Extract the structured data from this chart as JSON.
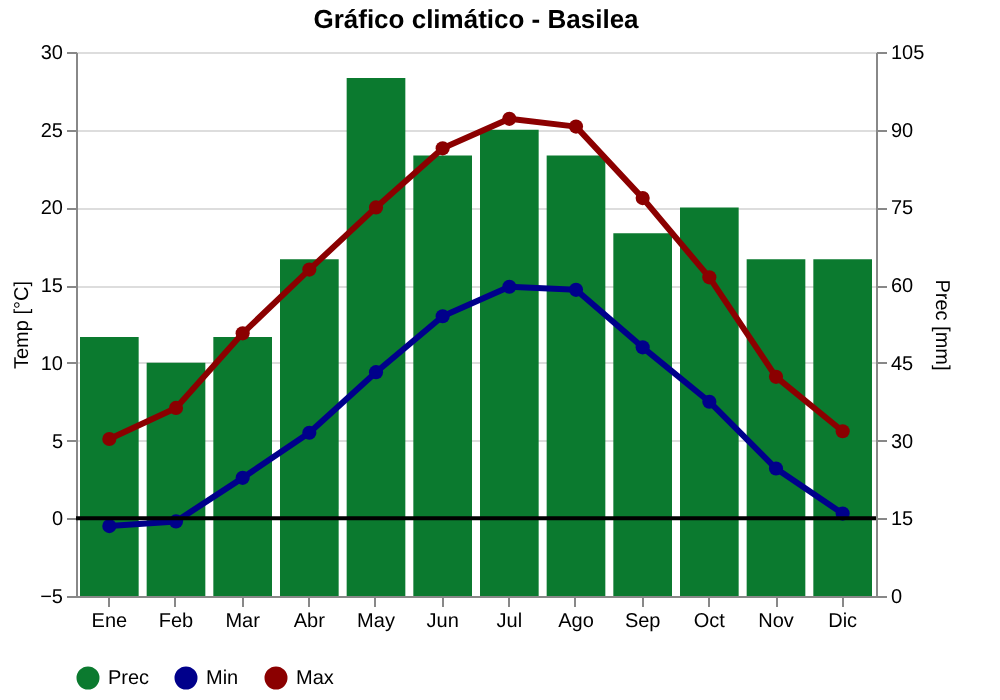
{
  "chart_data": {
    "type": "bar",
    "title": "Gráfico climático - Basilea",
    "ylabel": "Temp [°C]",
    "y2label": "Prec [mm]",
    "categories": [
      "Ene",
      "Feb",
      "Mar",
      "Abr",
      "May",
      "Jun",
      "Jul",
      "Ago",
      "Sep",
      "Oct",
      "Nov",
      "Dic"
    ],
    "series": [
      {
        "name": "Prec",
        "axis": "y2",
        "color": "#0b7a2f",
        "values": [
          50,
          45,
          50,
          65,
          100,
          85,
          90,
          85,
          70,
          75,
          65,
          65
        ]
      },
      {
        "name": "Min",
        "type": "line",
        "axis": "y",
        "color": "#00008b",
        "values": [
          -0.5,
          -0.2,
          2.6,
          5.5,
          9.4,
          13,
          14.9,
          14.7,
          11,
          7.5,
          3.2,
          0.3
        ]
      },
      {
        "name": "Max",
        "type": "line",
        "axis": "y",
        "color": "#8b0000",
        "values": [
          5.1,
          7.1,
          11.9,
          16,
          20,
          23.8,
          25.7,
          25.2,
          20.6,
          15.5,
          9.1,
          5.6
        ]
      }
    ],
    "ylim": [
      -5,
      30
    ],
    "yticks": [
      -5,
      0,
      5,
      10,
      15,
      20,
      25,
      30
    ],
    "y2lim": [
      0,
      105
    ],
    "y2ticks": [
      0,
      15,
      30,
      45,
      60,
      75,
      90,
      105
    ],
    "ref_lines": [
      {
        "axis": "y",
        "value": 0,
        "color": "#000000"
      }
    ],
    "grid": "y",
    "legend": "bottom left",
    "marker": "circle",
    "line_style": "solid"
  }
}
